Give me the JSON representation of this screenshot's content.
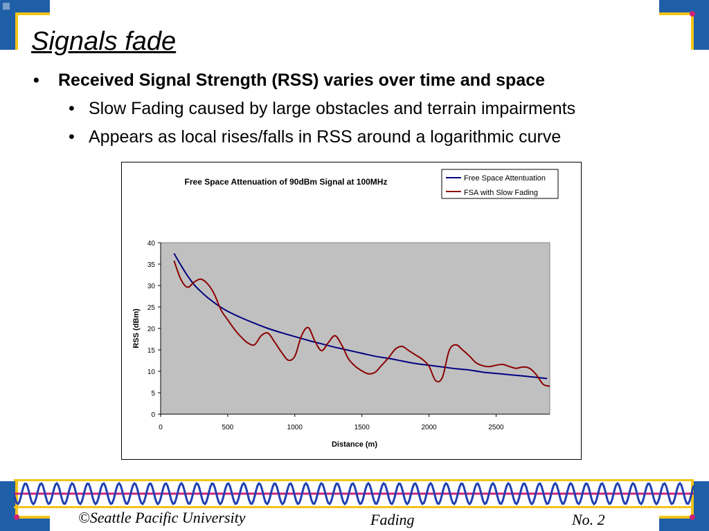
{
  "slide": {
    "title": "Signals fade",
    "bullets": [
      {
        "marker": "•",
        "text": "Received Signal Strength (RSS) varies over time and space"
      },
      {
        "marker": "•",
        "text": "Slow Fading caused by large obstacles and terrain impairments"
      },
      {
        "marker": "•",
        "text": "Appears as local rises/falls in RSS around a logarithmic curve"
      }
    ]
  },
  "footer": {
    "left": "©Seattle Pacific University",
    "center": "Fading",
    "right": "No. 2"
  },
  "colors": {
    "accent_blue": "#1f5fa8",
    "accent_gold": "#f2c418",
    "accent_magenta": "#cc2277",
    "plot_bg": "#c0c0c0",
    "series1": "#000080",
    "series2": "#8b0000"
  },
  "chart_data": {
    "type": "line",
    "title": "Free Space Attenuation of 90dBm Signal at 100MHz",
    "xlabel": "Distance (m)",
    "ylabel": "RSS (dBm)",
    "xlim": [
      0,
      2900
    ],
    "ylim": [
      0,
      40
    ],
    "xticks": [
      0,
      500,
      1000,
      1500,
      2000,
      2500
    ],
    "yticks": [
      0,
      5,
      10,
      15,
      20,
      25,
      30,
      35,
      40
    ],
    "grid": false,
    "legend_position": "top-right",
    "series": [
      {
        "name": "Free Space Attentuation",
        "color": "#000080",
        "x": [
          100,
          150,
          200,
          250,
          300,
          350,
          400,
          450,
          500,
          600,
          700,
          800,
          900,
          1000,
          1100,
          1200,
          1300,
          1400,
          1500,
          1600,
          1700,
          1800,
          1900,
          2000,
          2100,
          2200,
          2300,
          2400,
          2500,
          2600,
          2700,
          2800,
          2880
        ],
        "y": [
          37.5,
          34.8,
          32.3,
          30.2,
          28.6,
          27.2,
          26.0,
          24.9,
          24.0,
          22.5,
          21.2,
          20.0,
          19.0,
          18.1,
          17.2,
          16.4,
          15.6,
          14.9,
          14.2,
          13.5,
          13.0,
          12.4,
          11.8,
          11.4,
          11.0,
          10.6,
          10.3,
          9.8,
          9.5,
          9.2,
          8.9,
          8.6,
          8.3
        ]
      },
      {
        "name": "FSA with Slow Fading",
        "color": "#8b0000",
        "x": [
          100,
          150,
          200,
          250,
          300,
          350,
          400,
          450,
          500,
          550,
          600,
          650,
          700,
          750,
          800,
          850,
          900,
          950,
          1000,
          1050,
          1100,
          1150,
          1200,
          1250,
          1300,
          1350,
          1400,
          1450,
          1500,
          1550,
          1600,
          1650,
          1700,
          1750,
          1800,
          1850,
          1900,
          1950,
          2000,
          2050,
          2100,
          2150,
          2200,
          2250,
          2300,
          2350,
          2400,
          2450,
          2500,
          2550,
          2600,
          2650,
          2700,
          2750,
          2800,
          2850,
          2900
        ],
        "y": [
          35.8,
          31.5,
          29.6,
          30.8,
          31.5,
          30.4,
          28.0,
          24.3,
          22.0,
          19.8,
          18.0,
          16.6,
          16.2,
          18.3,
          18.9,
          16.8,
          14.5,
          12.6,
          13.5,
          18.3,
          20.2,
          17.0,
          14.8,
          16.7,
          18.3,
          16.1,
          12.9,
          11.2,
          10.1,
          9.4,
          9.8,
          11.5,
          13.2,
          15.2,
          15.8,
          14.8,
          13.8,
          12.8,
          11.2,
          7.8,
          8.6,
          14.8,
          16.2,
          15.0,
          13.6,
          12.0,
          11.3,
          11.1,
          11.4,
          11.6,
          11.1,
          10.7,
          11.0,
          10.7,
          9.2,
          7.0,
          6.5
        ]
      }
    ]
  }
}
